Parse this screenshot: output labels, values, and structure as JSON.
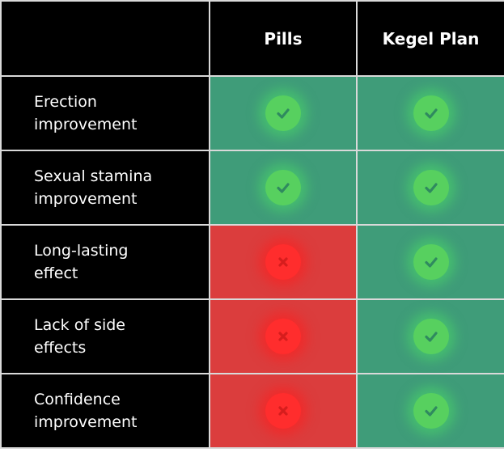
{
  "header": {
    "col_pills": "Pills",
    "col_kegel": "Kegel Plan"
  },
  "rows": [
    {
      "label_line1": "Erection",
      "label_line2": "improvement",
      "pills": "check",
      "kegel": "check"
    },
    {
      "label_line1": "Sexual stamina",
      "label_line2": "improvement",
      "pills": "check",
      "kegel": "check"
    },
    {
      "label_line1": "Long-lasting",
      "label_line2": "effect",
      "pills": "cross",
      "kegel": "check"
    },
    {
      "label_line1": "Lack of side",
      "label_line2": "effects",
      "pills": "cross",
      "kegel": "check"
    },
    {
      "label_line1": "Confidence",
      "label_line2": "improvement",
      "pills": "cross",
      "kegel": "check"
    }
  ],
  "colors": {
    "header_bg": "#000000",
    "yes_bg": "#3f9c79",
    "no_bg": "#db3d3d",
    "check_icon": "#57d05f",
    "cross_icon": "#ff2d2d",
    "grid_lines": "#d9d9d9"
  },
  "icons": {
    "check": "check-circle-icon",
    "cross": "cross-circle-icon"
  }
}
